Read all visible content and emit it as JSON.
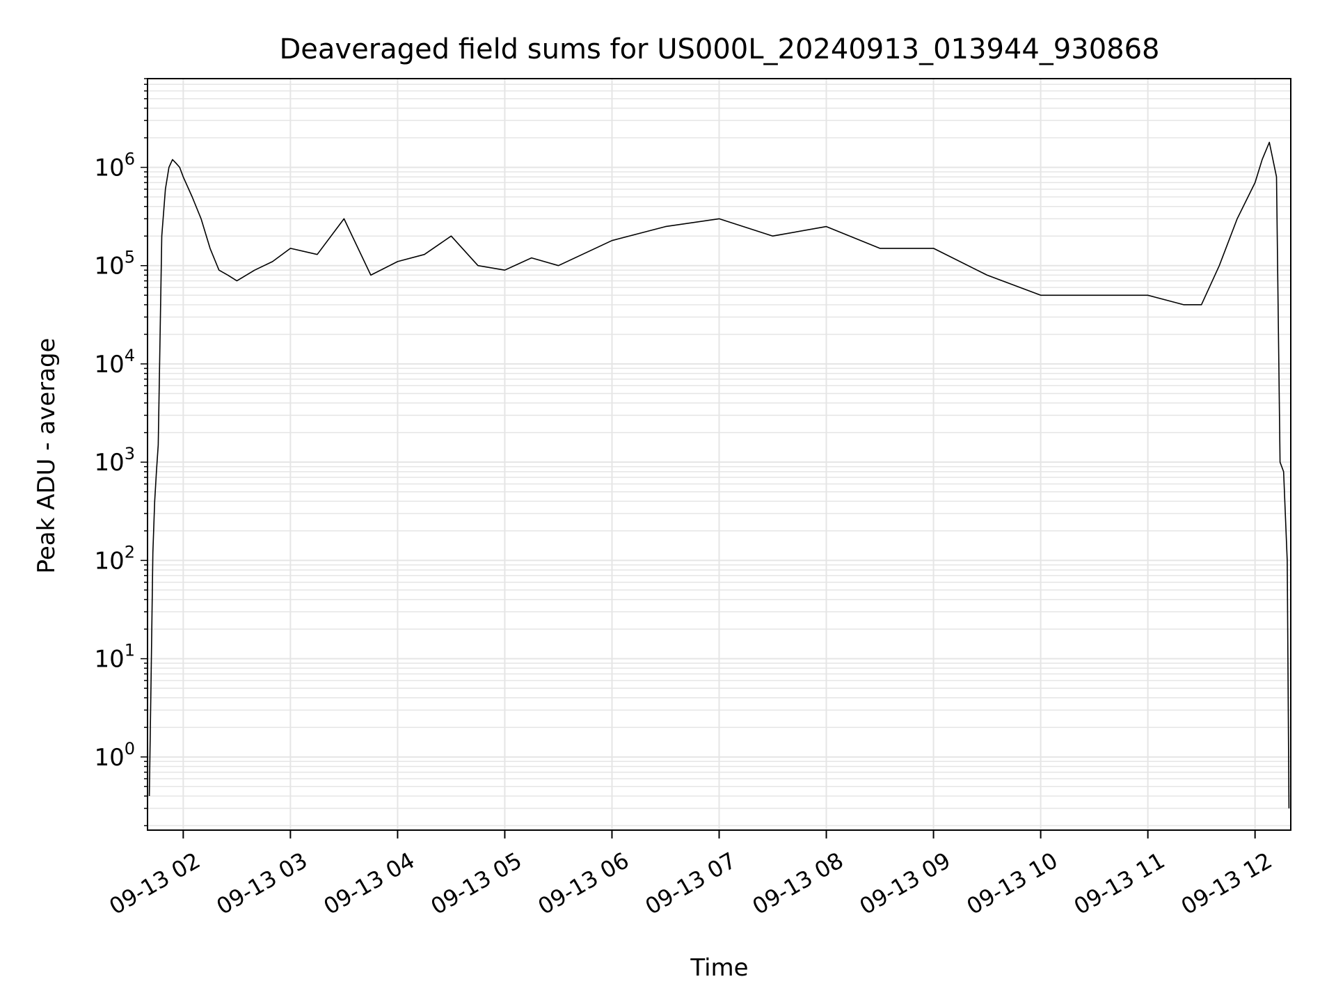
{
  "chart_data": {
    "type": "line",
    "title": "Deaveraged field sums for US000L_20240913_013944_930868",
    "xlabel": "Time",
    "ylabel": "Peak ADU - average",
    "yscale": "log",
    "grid": true,
    "legend": "none",
    "line_color": "#000000",
    "grid_color": "#e5e5e5",
    "xlim": [
      "2024-09-13 01:40",
      "2024-09-13 12:20"
    ],
    "ylim": [
      0.18,
      8000000
    ],
    "x_ticks": [
      "09-13 02",
      "09-13 03",
      "09-13 04",
      "09-13 05",
      "09-13 06",
      "09-13 07",
      "09-13 08",
      "09-13 09",
      "09-13 10",
      "09-13 11",
      "09-13 12"
    ],
    "y_ticks": [
      {
        "value": 1,
        "base": "10",
        "exp": "0"
      },
      {
        "value": 10,
        "base": "10",
        "exp": "1"
      },
      {
        "value": 100,
        "base": "10",
        "exp": "2"
      },
      {
        "value": 1000,
        "base": "10",
        "exp": "3"
      },
      {
        "value": 10000,
        "base": "10",
        "exp": "4"
      },
      {
        "value": 100000,
        "base": "10",
        "exp": "5"
      },
      {
        "value": 1000000,
        "base": "10",
        "exp": "6"
      }
    ],
    "series": [
      {
        "x": [
          "2024-09-13 01:41",
          "2024-09-13 01:42",
          "2024-09-13 01:43",
          "2024-09-13 01:44",
          "2024-09-13 01:45",
          "2024-09-13 01:46",
          "2024-09-13 01:48",
          "2024-09-13 01:50",
          "2024-09-13 01:52",
          "2024-09-13 01:54",
          "2024-09-13 01:56",
          "2024-09-13 01:58",
          "2024-09-13 02:00",
          "2024-09-13 02:05",
          "2024-09-13 02:10",
          "2024-09-13 02:15",
          "2024-09-13 02:20",
          "2024-09-13 02:25",
          "2024-09-13 02:30",
          "2024-09-13 02:40",
          "2024-09-13 02:50",
          "2024-09-13 03:00",
          "2024-09-13 03:15",
          "2024-09-13 03:30",
          "2024-09-13 03:45",
          "2024-09-13 04:00",
          "2024-09-13 04:15",
          "2024-09-13 04:30",
          "2024-09-13 04:45",
          "2024-09-13 05:00",
          "2024-09-13 05:15",
          "2024-09-13 05:30",
          "2024-09-13 06:00",
          "2024-09-13 06:30",
          "2024-09-13 07:00",
          "2024-09-13 07:30",
          "2024-09-13 08:00",
          "2024-09-13 08:30",
          "2024-09-13 09:00",
          "2024-09-13 09:30",
          "2024-09-13 10:00",
          "2024-09-13 10:30",
          "2024-09-13 11:00",
          "2024-09-13 11:20",
          "2024-09-13 11:30",
          "2024-09-13 11:40",
          "2024-09-13 11:50",
          "2024-09-13 12:00",
          "2024-09-13 12:04",
          "2024-09-13 12:08",
          "2024-09-13 12:12",
          "2024-09-13 12:14",
          "2024-09-13 12:16",
          "2024-09-13 12:18",
          "2024-09-13 12:19"
        ],
        "y": [
          0.4,
          6,
          120,
          400,
          800,
          1500,
          200000,
          600000,
          1000000,
          1200000,
          1100000,
          1000000,
          800000,
          500000,
          300000,
          150000,
          90000,
          80000,
          70000,
          90000,
          110000,
          150000,
          130000,
          300000,
          80000,
          110000,
          130000,
          200000,
          100000,
          90000,
          120000,
          100000,
          180000,
          250000,
          300000,
          200000,
          250000,
          150000,
          150000,
          80000,
          50000,
          50000,
          50000,
          40000,
          40000,
          100000,
          300000,
          700000,
          1200000,
          1800000,
          800000,
          1000,
          800,
          100,
          0.3
        ]
      }
    ]
  }
}
